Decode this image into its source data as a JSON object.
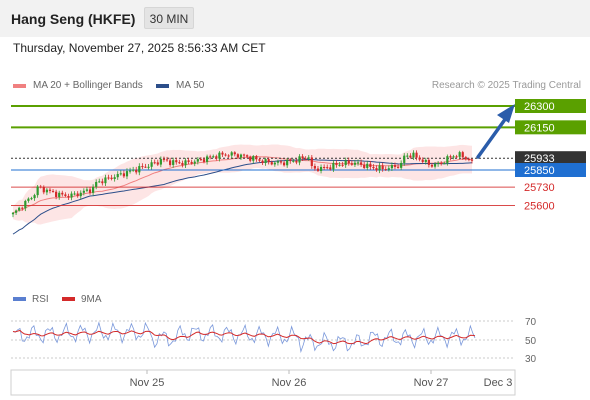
{
  "header": {
    "title": "Hang Seng (HKFE)",
    "interval": "30 MIN"
  },
  "datetime": "Thursday, November 27, 2025 8:56:33 AM CET",
  "legend": {
    "items": [
      {
        "label": "MA 20 + Bollinger Bands",
        "color": "#f08080"
      },
      {
        "label": "MA 50",
        "color": "#2c4e8a"
      }
    ],
    "credit": "Research © 2025 Trading Central"
  },
  "levels": [
    {
      "label": "26300",
      "value": 26300,
      "kind": "resistance",
      "color": "#5aa000"
    },
    {
      "label": "26150",
      "value": 26150,
      "kind": "resistance",
      "color": "#5aa000"
    },
    {
      "label": "25933",
      "value": 25933,
      "kind": "last",
      "color": "#333333"
    },
    {
      "label": "25850",
      "value": 25850,
      "kind": "pivot",
      "color": "#1f6fd1"
    },
    {
      "label": "25730",
      "value": 25730,
      "kind": "support",
      "color": "#d42a2a"
    },
    {
      "label": "25600",
      "value": 25600,
      "kind": "support",
      "color": "#d42a2a"
    }
  ],
  "rsi": {
    "legend": [
      {
        "label": "RSI",
        "color": "#5a7fd0"
      },
      {
        "label": "9MA",
        "color": "#d42a2a"
      }
    ],
    "ticks": [
      "70",
      "50",
      "30"
    ]
  },
  "x_axis": {
    "labels": [
      "Nov 25",
      "Nov 26",
      "Nov 27",
      "Dec 3"
    ]
  },
  "colors": {
    "up": "#2e9a2e",
    "down": "#d42a2a",
    "band_fill": "#fde0e0",
    "ma20": "#f08080",
    "ma50": "#2c4e8a",
    "arrow": "#2a5caa"
  }
}
